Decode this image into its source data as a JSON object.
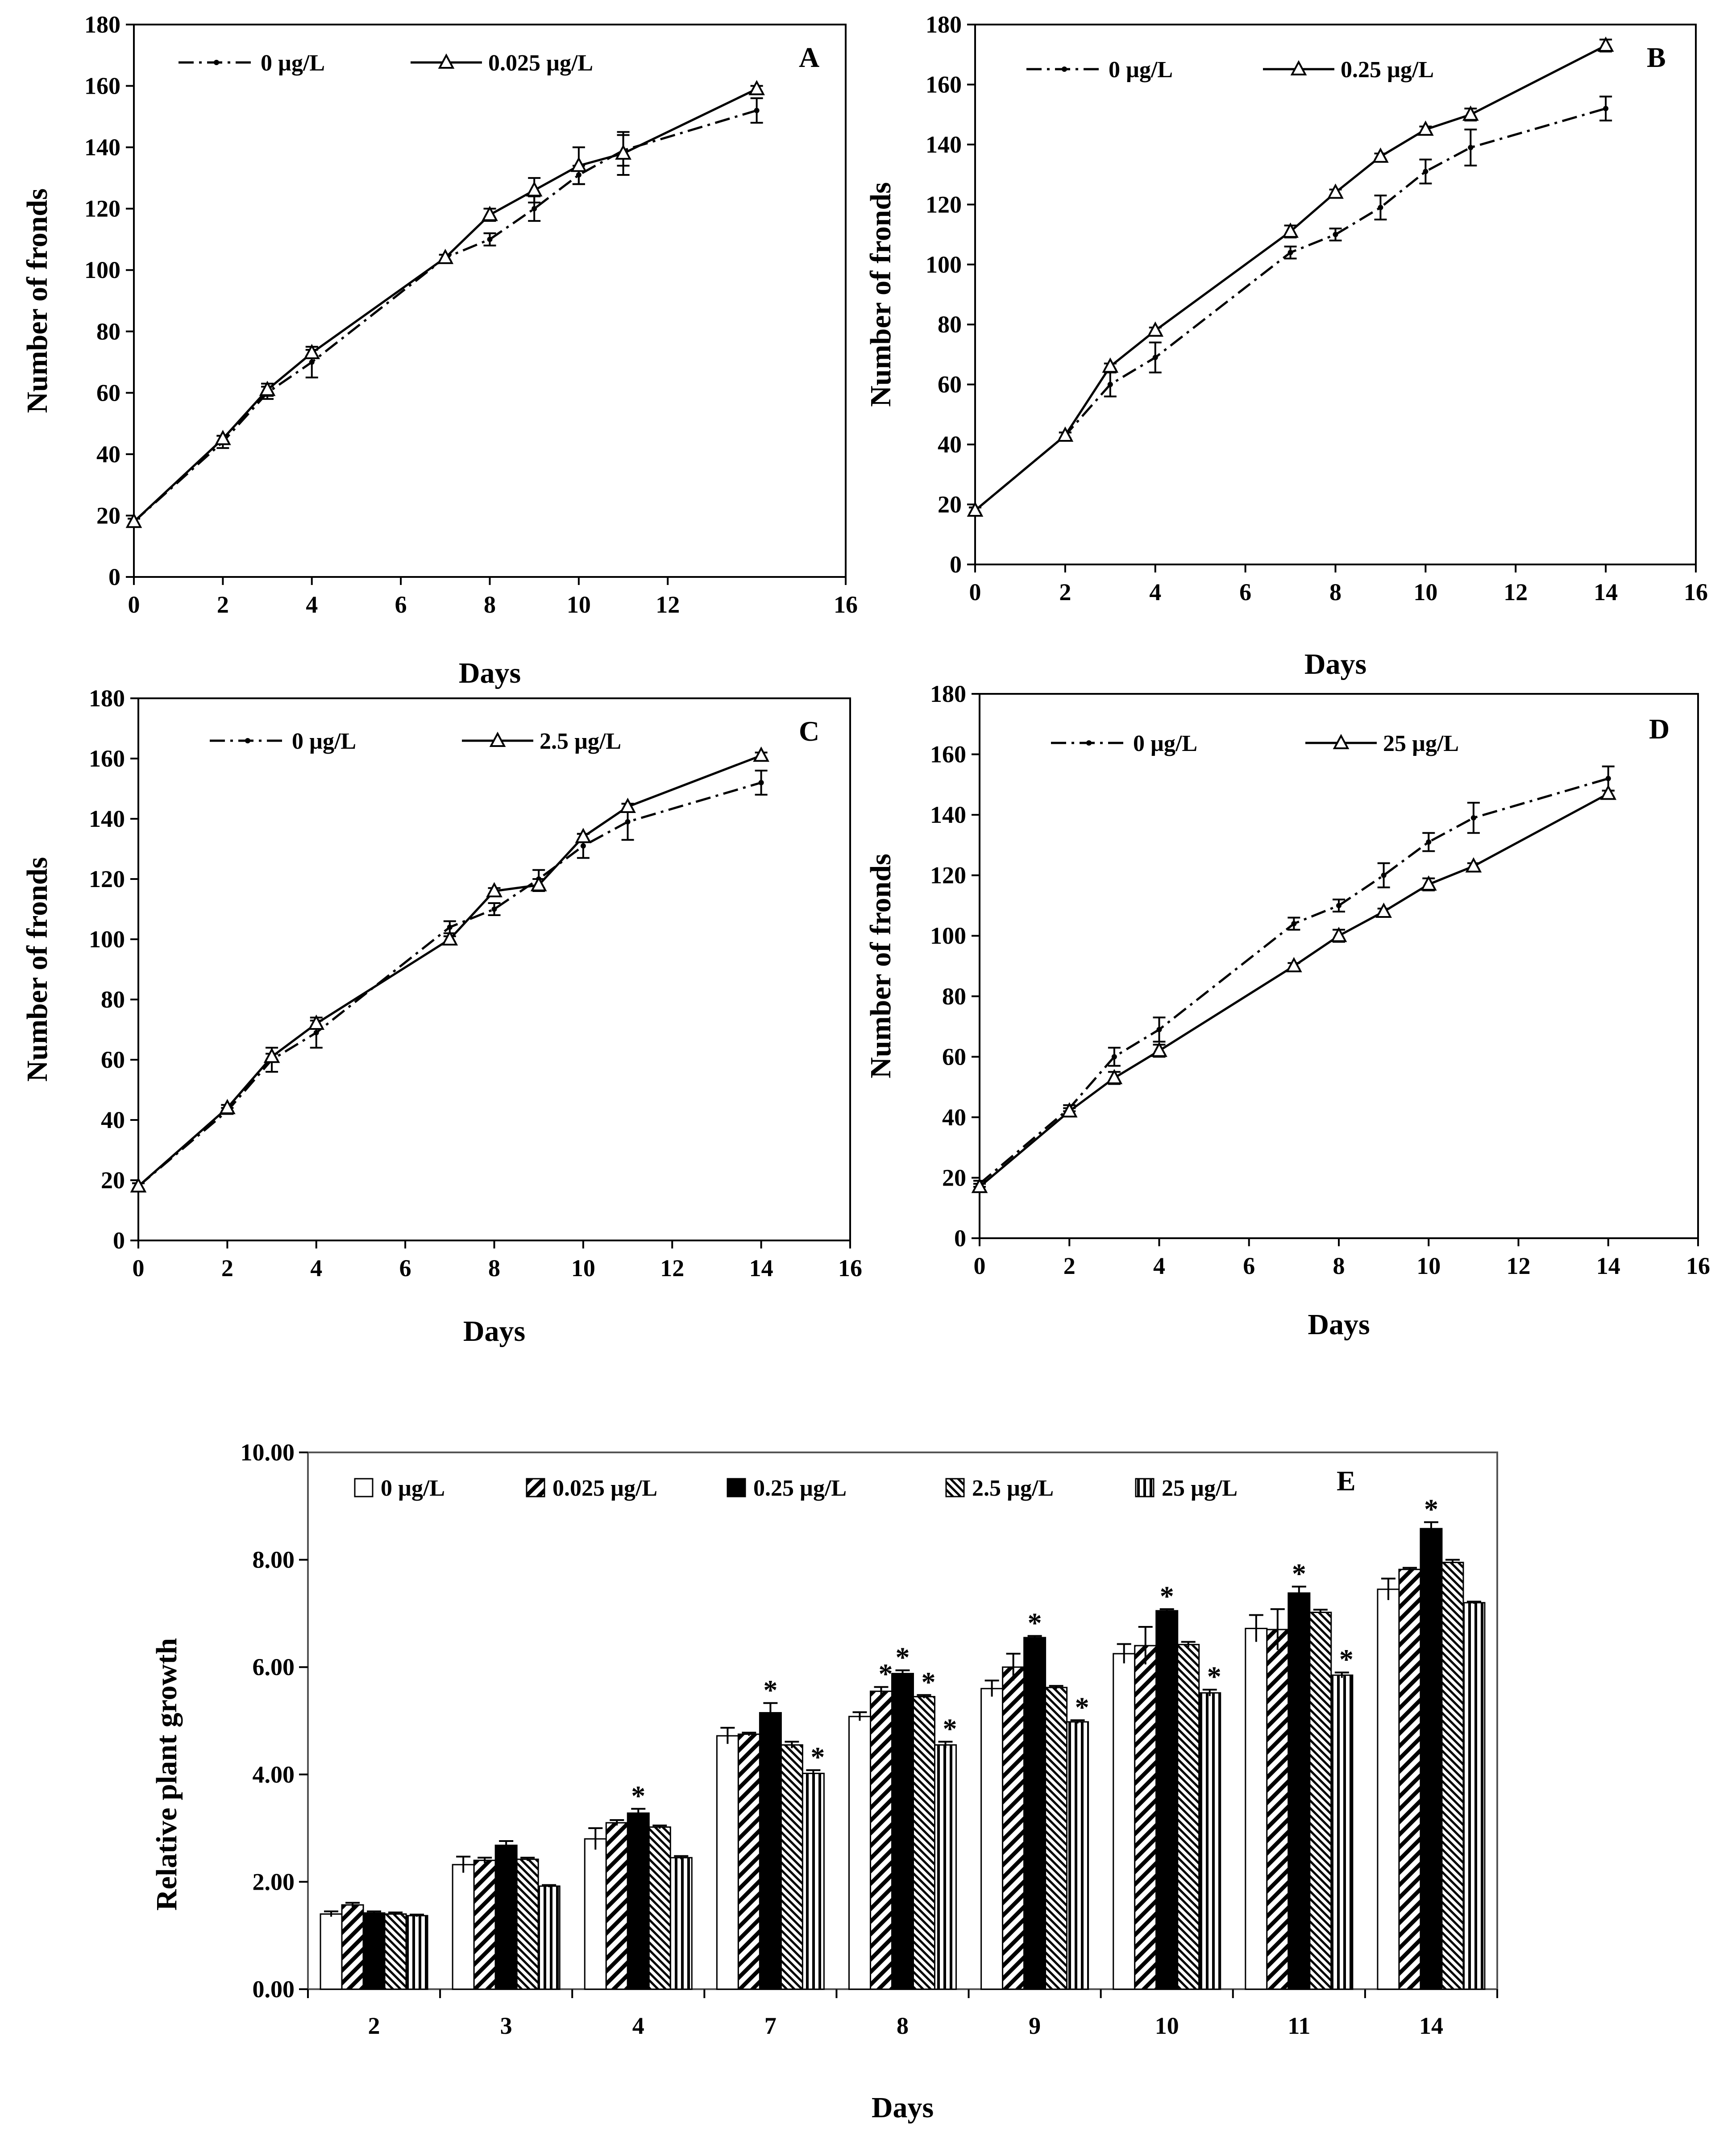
{
  "chart_data": [
    {
      "type": "line",
      "panel_label": "A",
      "xlabel": "Days",
      "ylabel": "Number of fronds",
      "xlim": [
        0,
        16
      ],
      "ylim": [
        0,
        180
      ],
      "xticks": [
        "0",
        "2",
        "4",
        "6",
        "8",
        "10",
        "12",
        "16"
      ],
      "yticks": [
        "0",
        "20",
        "40",
        "60",
        "80",
        "100",
        "120",
        "140",
        "160",
        "180"
      ],
      "legend_position": "top-left",
      "series": [
        {
          "name": "0 µg/L",
          "style": "dash-dot",
          "marker": "dot",
          "x": [
            0,
            2,
            3,
            4,
            7,
            8,
            9,
            10,
            11,
            14
          ],
          "y": [
            18,
            44,
            60,
            70,
            104,
            110,
            120,
            131,
            139,
            152
          ],
          "err": [
            1,
            2,
            2,
            5,
            1,
            2,
            4,
            3,
            5,
            4
          ]
        },
        {
          "name": "0.025 µg/L",
          "style": "solid",
          "marker": "triangle",
          "x": [
            0,
            2,
            3,
            4,
            7,
            8,
            9,
            10,
            11,
            14
          ],
          "y": [
            18,
            45,
            61,
            73,
            104,
            118,
            126,
            134,
            138,
            159
          ],
          "err": [
            1,
            1,
            2,
            1,
            1,
            2,
            4,
            6,
            7,
            1
          ]
        }
      ]
    },
    {
      "type": "line",
      "panel_label": "B",
      "xlabel": "Days",
      "ylabel": "Number of fronds",
      "xlim": [
        0,
        16
      ],
      "ylim": [
        0,
        180
      ],
      "xticks": [
        "0",
        "2",
        "4",
        "6",
        "8",
        "10",
        "12",
        "14",
        "16"
      ],
      "yticks": [
        "0",
        "20",
        "40",
        "60",
        "80",
        "100",
        "120",
        "140",
        "160",
        "180"
      ],
      "legend_position": "top-left",
      "series": [
        {
          "name": "0 µg/L",
          "style": "dash-dot",
          "marker": "dot",
          "x": [
            0,
            2,
            3,
            4,
            7,
            8,
            9,
            10,
            11,
            14
          ],
          "y": [
            18,
            43,
            60,
            69,
            104,
            110,
            119,
            131,
            139,
            152
          ],
          "err": [
            1,
            1,
            4,
            5,
            2,
            2,
            4,
            4,
            6,
            4
          ]
        },
        {
          "name": "0.25 µg/L",
          "style": "solid",
          "marker": "triangle",
          "x": [
            0,
            2,
            3,
            4,
            7,
            8,
            9,
            10,
            11,
            14
          ],
          "y": [
            18,
            43,
            66,
            78,
            111,
            124,
            136,
            145,
            150,
            173
          ],
          "err": [
            1,
            1,
            1,
            1,
            2,
            1,
            1,
            1,
            2,
            2
          ]
        }
      ]
    },
    {
      "type": "line",
      "panel_label": "C",
      "xlabel": "Days",
      "ylabel": "Number of fronds",
      "xlim": [
        0,
        16
      ],
      "ylim": [
        0,
        180
      ],
      "xticks": [
        "0",
        "2",
        "4",
        "6",
        "8",
        "10",
        "12",
        "14",
        "16"
      ],
      "yticks": [
        "0",
        "20",
        "40",
        "60",
        "80",
        "100",
        "120",
        "140",
        "160",
        "180"
      ],
      "legend_position": "top-left",
      "series": [
        {
          "name": "0 µg/L",
          "style": "dash-dot",
          "marker": "dot",
          "x": [
            0,
            2,
            3,
            4,
            7,
            8,
            9,
            10,
            11,
            14
          ],
          "y": [
            18,
            43,
            60,
            69,
            104,
            110,
            120,
            131,
            139,
            152
          ],
          "err": [
            1,
            1,
            4,
            5,
            2,
            2,
            3,
            4,
            6,
            4
          ]
        },
        {
          "name": "2.5 µg/L",
          "style": "solid",
          "marker": "triangle",
          "x": [
            0,
            2,
            3,
            4,
            7,
            8,
            9,
            10,
            11,
            14
          ],
          "y": [
            18,
            44,
            61,
            72,
            100,
            116,
            118,
            134,
            144,
            161
          ],
          "err": [
            1,
            1,
            1,
            1,
            1,
            1,
            2,
            1,
            1,
            1
          ]
        }
      ]
    },
    {
      "type": "line",
      "panel_label": "D",
      "xlabel": "Days",
      "ylabel": "Number of fronds",
      "xlim": [
        0,
        16
      ],
      "ylim": [
        0,
        180
      ],
      "xticks": [
        "0",
        "2",
        "4",
        "6",
        "8",
        "10",
        "12",
        "14",
        "16"
      ],
      "yticks": [
        "0",
        "20",
        "40",
        "60",
        "80",
        "100",
        "120",
        "140",
        "160",
        "180"
      ],
      "legend_position": "top-left",
      "series": [
        {
          "name": "0 µg/L",
          "style": "dash-dot",
          "marker": "dot",
          "x": [
            0,
            2,
            3,
            4,
            7,
            8,
            9,
            10,
            11,
            14
          ],
          "y": [
            18,
            43,
            60,
            69,
            104,
            110,
            120,
            131,
            139,
            152
          ],
          "err": [
            1,
            1,
            3,
            4,
            2,
            2,
            4,
            3,
            5,
            4
          ]
        },
        {
          "name": "25 µg/L",
          "style": "solid",
          "marker": "triangle",
          "x": [
            0,
            2,
            3,
            4,
            7,
            8,
            9,
            10,
            11,
            14
          ],
          "y": [
            17,
            42,
            53,
            62,
            90,
            100,
            108,
            117,
            123,
            147
          ],
          "err": [
            1,
            1,
            2,
            2,
            1,
            2,
            1,
            2,
            1,
            1
          ]
        }
      ]
    },
    {
      "type": "bar",
      "panel_label": "E",
      "xlabel": "Days",
      "ylabel": "Relative plant growth",
      "ylim": [
        0,
        10
      ],
      "yticks": [
        "0.00",
        "2.00",
        "4.00",
        "6.00",
        "8.00",
        "10.00"
      ],
      "categories": [
        "2",
        "3",
        "4",
        "7",
        "8",
        "9",
        "10",
        "11",
        "14"
      ],
      "legend_position": "top",
      "series": [
        {
          "name": "0 µg/L",
          "pattern": "empty",
          "values": [
            1.4,
            2.32,
            2.8,
            4.72,
            5.08,
            5.6,
            6.25,
            6.72,
            7.45
          ],
          "err": [
            0.05,
            0.15,
            0.2,
            0.15,
            0.08,
            0.15,
            0.18,
            0.25,
            0.2
          ],
          "significant": [
            false,
            false,
            false,
            false,
            false,
            false,
            false,
            false,
            false
          ]
        },
        {
          "name": "0.025 µg/L",
          "pattern": "wide-diagonal",
          "values": [
            1.57,
            2.4,
            3.1,
            4.75,
            5.55,
            6.0,
            6.4,
            6.7,
            7.82
          ],
          "err": [
            0.04,
            0.05,
            0.05,
            0.03,
            0.08,
            0.25,
            0.35,
            0.38,
            0.03
          ],
          "significant": [
            false,
            false,
            false,
            false,
            true,
            false,
            false,
            false,
            false
          ]
        },
        {
          "name": "0.25 µg/L",
          "pattern": "solid",
          "values": [
            1.42,
            2.68,
            3.28,
            5.15,
            5.88,
            6.55,
            7.05,
            7.38,
            8.58
          ],
          "err": [
            0.03,
            0.08,
            0.08,
            0.18,
            0.06,
            0.03,
            0.03,
            0.12,
            0.12
          ],
          "significant": [
            false,
            false,
            true,
            true,
            true,
            true,
            true,
            true,
            true
          ]
        },
        {
          "name": "2.5 µg/L",
          "pattern": "dense-diagonal",
          "values": [
            1.4,
            2.42,
            3.02,
            4.55,
            5.45,
            5.62,
            6.42,
            7.02,
            7.95
          ],
          "err": [
            0.03,
            0.03,
            0.03,
            0.06,
            0.03,
            0.03,
            0.05,
            0.05,
            0.05
          ],
          "significant": [
            false,
            false,
            false,
            false,
            true,
            false,
            false,
            false,
            false
          ]
        },
        {
          "name": "25 µg/L",
          "pattern": "vertical",
          "values": [
            1.37,
            1.92,
            2.45,
            4.02,
            4.55,
            4.98,
            5.52,
            5.85,
            7.2
          ],
          "err": [
            0.02,
            0.02,
            0.03,
            0.06,
            0.06,
            0.03,
            0.06,
            0.05,
            0.02
          ],
          "significant": [
            false,
            false,
            false,
            true,
            true,
            true,
            true,
            true,
            false
          ]
        }
      ]
    }
  ],
  "colors": {
    "ink": "#000000",
    "background": "#ffffff"
  }
}
